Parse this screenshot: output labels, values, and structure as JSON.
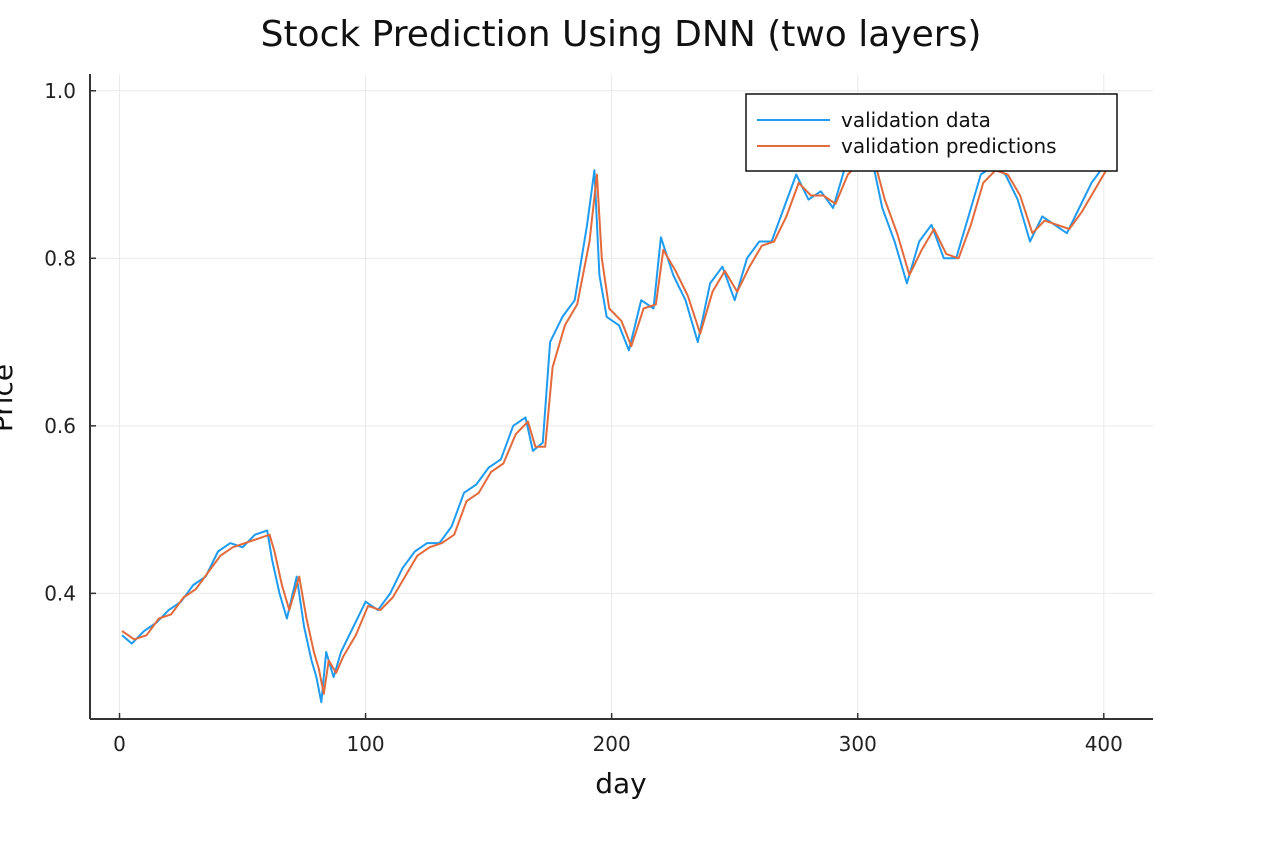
{
  "chart_data": {
    "type": "line",
    "title": "Stock Prediction Using DNN (two layers)",
    "xlabel": "day",
    "ylabel": "Price",
    "xlim": [
      -12,
      420
    ],
    "ylim": [
      0.25,
      1.02
    ],
    "xticks": [
      0,
      100,
      200,
      300,
      400
    ],
    "xtick_labels": [
      "0",
      "100",
      "200",
      "300",
      "400"
    ],
    "yticks": [
      0.4,
      0.6,
      0.8,
      1.0
    ],
    "ytick_labels": [
      "0.4",
      "0.6",
      "0.8",
      "1.0"
    ],
    "grid": true,
    "legend_position": "top-right",
    "series": [
      {
        "name": "validation data",
        "color": "#1f9bf0",
        "points": [
          [
            1,
            0.35
          ],
          [
            5,
            0.34
          ],
          [
            10,
            0.355
          ],
          [
            15,
            0.365
          ],
          [
            20,
            0.38
          ],
          [
            25,
            0.39
          ],
          [
            30,
            0.41
          ],
          [
            35,
            0.42
          ],
          [
            40,
            0.45
          ],
          [
            45,
            0.46
          ],
          [
            50,
            0.455
          ],
          [
            55,
            0.47
          ],
          [
            60,
            0.475
          ],
          [
            62,
            0.44
          ],
          [
            65,
            0.4
          ],
          [
            68,
            0.37
          ],
          [
            72,
            0.42
          ],
          [
            75,
            0.36
          ],
          [
            78,
            0.32
          ],
          [
            80,
            0.3
          ],
          [
            82,
            0.27
          ],
          [
            84,
            0.33
          ],
          [
            87,
            0.3
          ],
          [
            90,
            0.33
          ],
          [
            95,
            0.36
          ],
          [
            100,
            0.39
          ],
          [
            105,
            0.38
          ],
          [
            110,
            0.4
          ],
          [
            115,
            0.43
          ],
          [
            120,
            0.45
          ],
          [
            125,
            0.46
          ],
          [
            130,
            0.46
          ],
          [
            135,
            0.48
          ],
          [
            140,
            0.52
          ],
          [
            145,
            0.53
          ],
          [
            150,
            0.55
          ],
          [
            155,
            0.56
          ],
          [
            160,
            0.6
          ],
          [
            165,
            0.61
          ],
          [
            168,
            0.57
          ],
          [
            172,
            0.58
          ],
          [
            175,
            0.7
          ],
          [
            180,
            0.73
          ],
          [
            185,
            0.75
          ],
          [
            190,
            0.84
          ],
          [
            193,
            0.905
          ],
          [
            195,
            0.78
          ],
          [
            198,
            0.73
          ],
          [
            203,
            0.72
          ],
          [
            207,
            0.69
          ],
          [
            212,
            0.75
          ],
          [
            217,
            0.74
          ],
          [
            220,
            0.825
          ],
          [
            225,
            0.78
          ],
          [
            230,
            0.75
          ],
          [
            235,
            0.7
          ],
          [
            240,
            0.77
          ],
          [
            245,
            0.79
          ],
          [
            250,
            0.75
          ],
          [
            255,
            0.8
          ],
          [
            260,
            0.82
          ],
          [
            265,
            0.82
          ],
          [
            270,
            0.86
          ],
          [
            275,
            0.9
          ],
          [
            280,
            0.87
          ],
          [
            285,
            0.88
          ],
          [
            290,
            0.86
          ],
          [
            295,
            0.91
          ],
          [
            300,
            0.92
          ],
          [
            305,
            0.93
          ],
          [
            310,
            0.86
          ],
          [
            315,
            0.82
          ],
          [
            320,
            0.77
          ],
          [
            325,
            0.82
          ],
          [
            330,
            0.84
          ],
          [
            335,
            0.8
          ],
          [
            340,
            0.8
          ],
          [
            345,
            0.85
          ],
          [
            350,
            0.9
          ],
          [
            355,
            0.91
          ],
          [
            360,
            0.9
          ],
          [
            365,
            0.87
          ],
          [
            370,
            0.82
          ],
          [
            375,
            0.85
          ],
          [
            380,
            0.84
          ],
          [
            385,
            0.83
          ],
          [
            390,
            0.86
          ],
          [
            395,
            0.89
          ],
          [
            400,
            0.91
          ],
          [
            404,
            0.99
          ]
        ]
      },
      {
        "name": "validation predictions",
        "color": "#e26a3b",
        "points": [
          [
            1,
            0.355
          ],
          [
            6,
            0.345
          ],
          [
            11,
            0.35
          ],
          [
            16,
            0.37
          ],
          [
            21,
            0.375
          ],
          [
            26,
            0.395
          ],
          [
            31,
            0.405
          ],
          [
            36,
            0.425
          ],
          [
            41,
            0.445
          ],
          [
            46,
            0.455
          ],
          [
            51,
            0.46
          ],
          [
            56,
            0.465
          ],
          [
            61,
            0.47
          ],
          [
            63,
            0.45
          ],
          [
            66,
            0.41
          ],
          [
            69,
            0.38
          ],
          [
            73,
            0.42
          ],
          [
            76,
            0.37
          ],
          [
            79,
            0.33
          ],
          [
            81,
            0.31
          ],
          [
            83,
            0.28
          ],
          [
            85,
            0.32
          ],
          [
            88,
            0.305
          ],
          [
            91,
            0.325
          ],
          [
            96,
            0.35
          ],
          [
            101,
            0.385
          ],
          [
            106,
            0.38
          ],
          [
            111,
            0.395
          ],
          [
            116,
            0.42
          ],
          [
            121,
            0.445
          ],
          [
            126,
            0.455
          ],
          [
            131,
            0.46
          ],
          [
            136,
            0.47
          ],
          [
            141,
            0.51
          ],
          [
            146,
            0.52
          ],
          [
            151,
            0.545
          ],
          [
            156,
            0.555
          ],
          [
            161,
            0.59
          ],
          [
            166,
            0.605
          ],
          [
            169,
            0.575
          ],
          [
            173,
            0.575
          ],
          [
            176,
            0.67
          ],
          [
            181,
            0.72
          ],
          [
            186,
            0.745
          ],
          [
            191,
            0.82
          ],
          [
            194,
            0.9
          ],
          [
            196,
            0.8
          ],
          [
            199,
            0.74
          ],
          [
            204,
            0.725
          ],
          [
            208,
            0.695
          ],
          [
            213,
            0.74
          ],
          [
            218,
            0.745
          ],
          [
            221,
            0.81
          ],
          [
            226,
            0.785
          ],
          [
            231,
            0.755
          ],
          [
            236,
            0.71
          ],
          [
            241,
            0.76
          ],
          [
            246,
            0.785
          ],
          [
            251,
            0.76
          ],
          [
            256,
            0.79
          ],
          [
            261,
            0.815
          ],
          [
            266,
            0.82
          ],
          [
            271,
            0.85
          ],
          [
            276,
            0.89
          ],
          [
            281,
            0.875
          ],
          [
            286,
            0.875
          ],
          [
            291,
            0.865
          ],
          [
            296,
            0.9
          ],
          [
            301,
            0.915
          ],
          [
            306,
            0.925
          ],
          [
            311,
            0.87
          ],
          [
            316,
            0.83
          ],
          [
            321,
            0.78
          ],
          [
            326,
            0.81
          ],
          [
            331,
            0.835
          ],
          [
            336,
            0.805
          ],
          [
            341,
            0.8
          ],
          [
            346,
            0.84
          ],
          [
            351,
            0.89
          ],
          [
            356,
            0.905
          ],
          [
            361,
            0.9
          ],
          [
            366,
            0.875
          ],
          [
            371,
            0.83
          ],
          [
            376,
            0.845
          ],
          [
            381,
            0.84
          ],
          [
            386,
            0.835
          ],
          [
            391,
            0.855
          ],
          [
            396,
            0.88
          ],
          [
            401,
            0.905
          ],
          [
            405,
            0.985
          ]
        ]
      }
    ]
  }
}
